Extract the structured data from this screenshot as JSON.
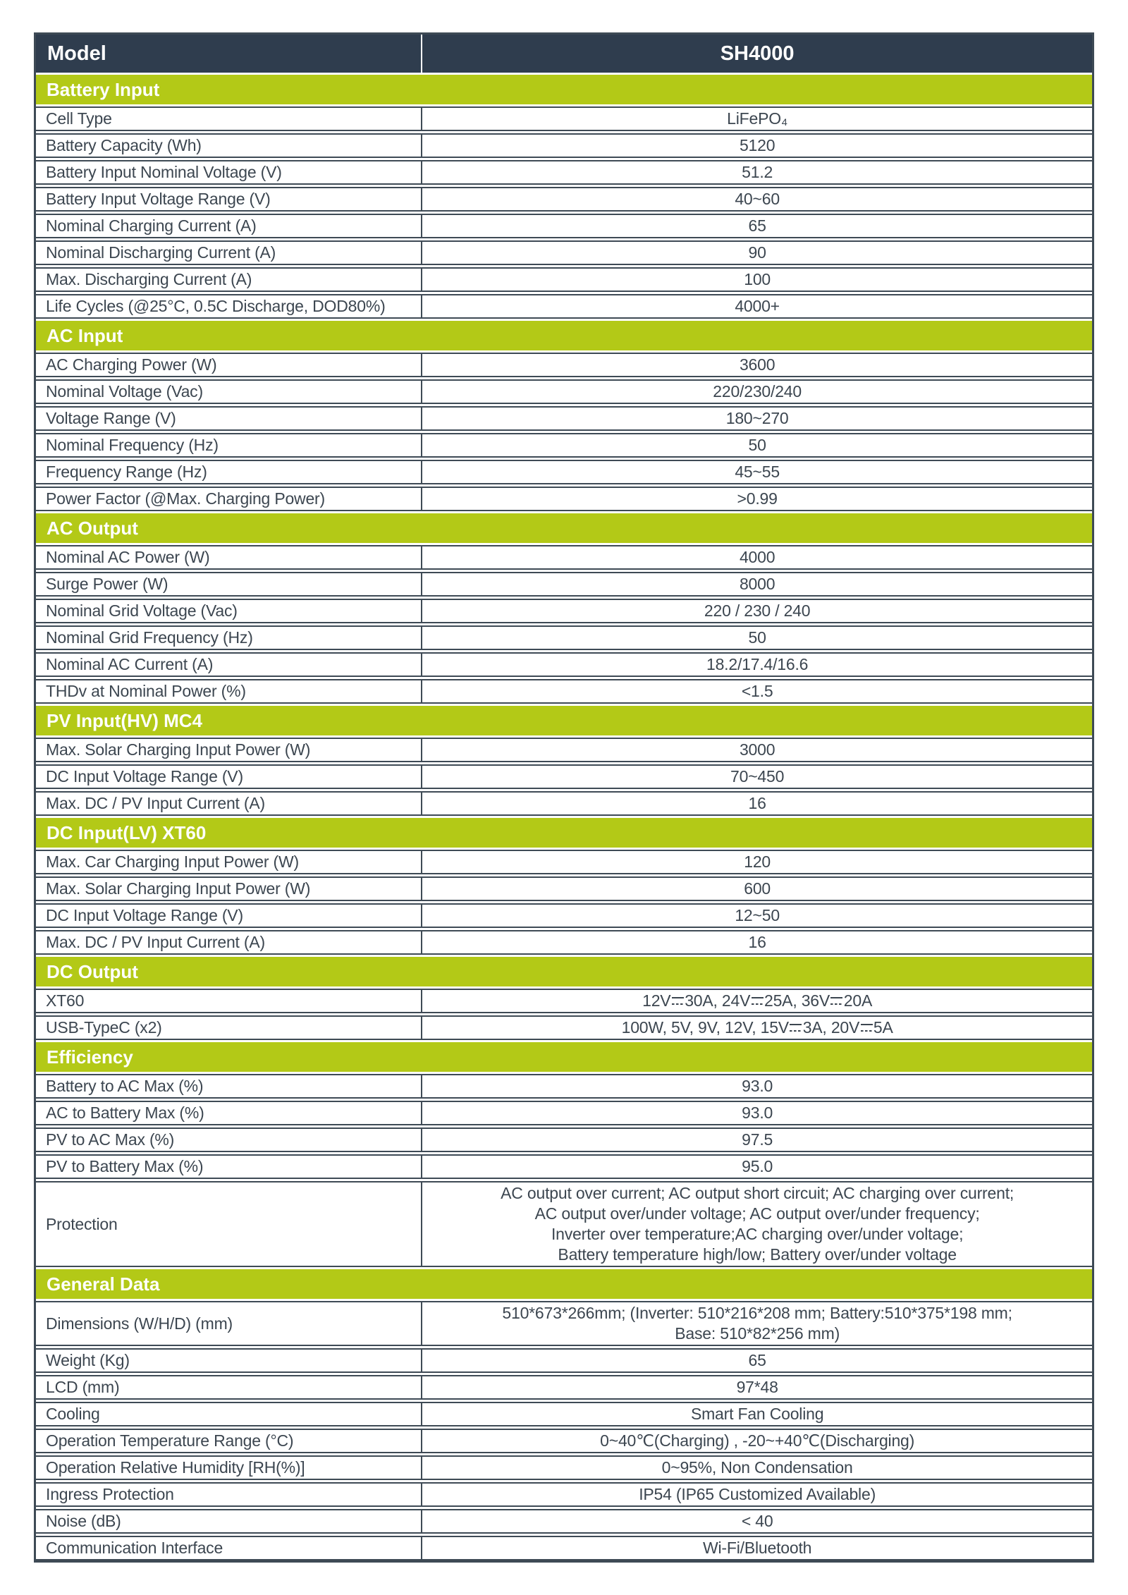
{
  "colors": {
    "header_bg": "#2F3D4E",
    "section_bg": "#B3C917",
    "border": "#3E4A55",
    "text": "#3C4650",
    "header_text": "#FFFFFF"
  },
  "header": {
    "model_label": "Model",
    "model_value": "SH4000"
  },
  "sections": [
    {
      "title": "Battery Input",
      "rows": [
        {
          "label": "Cell Type",
          "value": "LiFePO₄"
        },
        {
          "label": "Battery Capacity (Wh)",
          "value": "5120"
        },
        {
          "label": "Battery Input Nominal Voltage (V)",
          "value": "51.2"
        },
        {
          "label": "Battery Input Voltage Range (V)",
          "value": "40~60"
        },
        {
          "label": "Nominal Charging Current (A)",
          "value": "65"
        },
        {
          "label": "Nominal Discharging Current (A)",
          "value": "90"
        },
        {
          "label": "Max. Discharging Current (A)",
          "value": "100"
        },
        {
          "label": "Life Cycles (@25°C, 0.5C Discharge, DOD80%)",
          "value": "4000+"
        }
      ]
    },
    {
      "title": "AC Input",
      "rows": [
        {
          "label": "AC Charging Power (W)",
          "value": "3600"
        },
        {
          "label": "Nominal Voltage (Vac)",
          "value": "220/230/240"
        },
        {
          "label": "Voltage Range (V)",
          "value": "180~270"
        },
        {
          "label": "Nominal Frequency (Hz)",
          "value": "50"
        },
        {
          "label": "Frequency Range (Hz)",
          "value": "45~55"
        },
        {
          "label": "Power Factor (@Max. Charging Power)",
          "value": ">0.99"
        }
      ]
    },
    {
      "title": "AC Output",
      "rows": [
        {
          "label": "Nominal AC Power (W)",
          "value": "4000"
        },
        {
          "label": "Surge Power (W)",
          "value": "8000"
        },
        {
          "label": "Nominal Grid Voltage (Vac)",
          "value": "220 / 230 / 240"
        },
        {
          "label": "Nominal Grid Frequency (Hz)",
          "value": "50"
        },
        {
          "label": "Nominal AC Current (A)",
          "value": "18.2/17.4/16.6"
        },
        {
          "label": "THDv at Nominal Power (%)",
          "value": "<1.5"
        }
      ]
    },
    {
      "title": "PV Input(HV) MC4",
      "rows": [
        {
          "label": "Max. Solar Charging Input Power (W)",
          "value": "3000"
        },
        {
          "label": "DC Input Voltage Range (V)",
          "value": "70~450"
        },
        {
          "label": "Max. DC / PV Input Current (A)",
          "value": "16"
        }
      ]
    },
    {
      "title": "DC Input(LV) XT60",
      "rows": [
        {
          "label": "Max. Car Charging Input Power (W)",
          "value": "120"
        },
        {
          "label": "Max. Solar Charging Input Power (W)",
          "value": "600"
        },
        {
          "label": "DC Input Voltage Range (V)",
          "value": "12~50"
        },
        {
          "label": "Max. DC / PV Input Current (A)",
          "value": "16"
        }
      ]
    },
    {
      "title": "DC Output",
      "rows": [
        {
          "label": "XT60",
          "value": "12V⎓30A, 24V⎓25A, 36V⎓20A"
        },
        {
          "label": "USB-TypeC (x2)",
          "value": "100W, 5V, 9V, 12V, 15V⎓3A, 20V⎓5A"
        }
      ]
    },
    {
      "title": "Efficiency",
      "rows": [
        {
          "label": "Battery to AC Max (%)",
          "value": "93.0"
        },
        {
          "label": "AC to Battery Max (%)",
          "value": "93.0"
        },
        {
          "label": "PV to AC Max (%)",
          "value": "97.5"
        },
        {
          "label": "PV to Battery Max (%)",
          "value": "95.0"
        },
        {
          "label": "Protection",
          "value": "AC output over current; AC output short circuit; AC charging over current;\nAC output over/under voltage; AC output over/under frequency;\nInverter over temperature;AC charging over/under voltage;\nBattery temperature high/low; Battery over/under voltage"
        }
      ]
    },
    {
      "title": "General Data",
      "rows": [
        {
          "label": "Dimensions (W/H/D) (mm)",
          "value": "510*673*266mm; (Inverter: 510*216*208 mm; Battery:510*375*198 mm;\nBase: 510*82*256 mm)"
        },
        {
          "label": "Weight (Kg)",
          "value": "65"
        },
        {
          "label": "LCD (mm)",
          "value": "97*48"
        },
        {
          "label": "Cooling",
          "value": "Smart Fan Cooling"
        },
        {
          "label": "Operation Temperature Range (°C)",
          "value": "0~40℃(Charging) , -20~+40℃(Discharging)"
        },
        {
          "label": "Operation Relative Humidity [RH(%)]",
          "value": "0~95%, Non Condensation"
        },
        {
          "label": "Ingress Protection",
          "value": "IP54 (IP65 Customized Available)"
        },
        {
          "label": "Noise (dB)",
          "value": "< 40"
        },
        {
          "label": "Communication Interface",
          "value": "Wi-Fi/Bluetooth"
        }
      ]
    }
  ]
}
